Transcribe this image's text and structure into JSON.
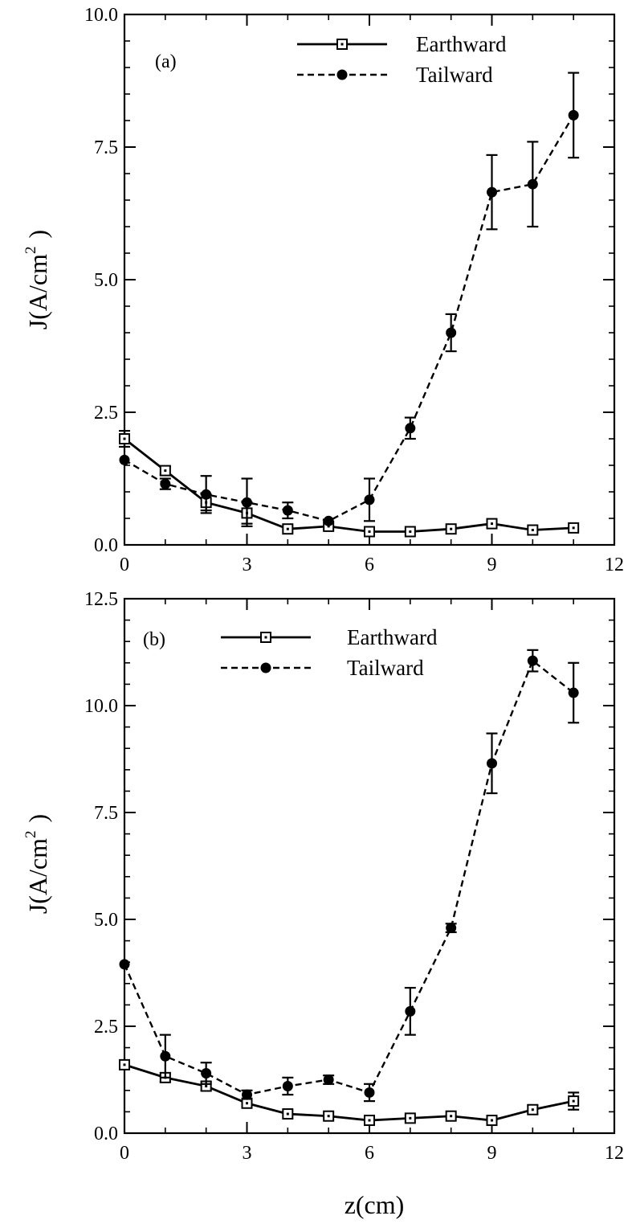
{
  "figure": {
    "xlabel": "z(cm)"
  },
  "chart_data": [
    {
      "type": "line",
      "panel_label": "(a)",
      "ylabel_main": "J(A/cm",
      "ylabel_sup": "2",
      "ylabel_close": ")",
      "xlim": [
        0,
        12
      ],
      "ylim": [
        0,
        10
      ],
      "xticks": [
        "0",
        "3",
        "6",
        "9",
        "12"
      ],
      "yticks": [
        "0.0",
        "2.5",
        "5.0",
        "7.5",
        "10.0"
      ],
      "grid": false,
      "legend_position": "top-right",
      "x": [
        0,
        1,
        2,
        3,
        4,
        5,
        6,
        7,
        8,
        9,
        10,
        11
      ],
      "series": [
        {
          "name": "Earthward",
          "style": "solid",
          "marker": "open-square",
          "values": [
            2.0,
            1.4,
            0.8,
            0.6,
            0.3,
            0.35,
            0.25,
            0.25,
            0.3,
            0.4,
            0.28,
            0.32
          ],
          "errors": [
            0.15,
            0.08,
            0.15,
            0.2,
            0,
            0,
            0,
            0,
            0,
            0,
            0,
            0
          ]
        },
        {
          "name": "Tailward",
          "style": "dashed",
          "marker": "filled-circle",
          "values": [
            1.6,
            1.15,
            0.95,
            0.8,
            0.65,
            0.45,
            0.85,
            2.2,
            4.0,
            6.65,
            6.8,
            8.1
          ],
          "errors": [
            0,
            0.1,
            0.35,
            0.45,
            0.15,
            0,
            0.4,
            0.2,
            0.35,
            0.7,
            0.8,
            0.8
          ]
        }
      ]
    },
    {
      "type": "line",
      "panel_label": "(b)",
      "ylabel_main": "J(A/cm",
      "ylabel_sup": "2",
      "ylabel_close": ")",
      "xlim": [
        0,
        12
      ],
      "ylim": [
        0,
        12.5
      ],
      "xticks": [
        "0",
        "3",
        "6",
        "9",
        "12"
      ],
      "yticks": [
        "0.0",
        "2.5",
        "5.0",
        "7.5",
        "10.0",
        "12.5"
      ],
      "grid": false,
      "legend_position": "top-right",
      "x": [
        0,
        1,
        2,
        3,
        4,
        5,
        6,
        7,
        8,
        9,
        10,
        11
      ],
      "series": [
        {
          "name": "Earthward",
          "style": "solid",
          "marker": "open-square",
          "values": [
            1.6,
            1.3,
            1.1,
            0.7,
            0.45,
            0.4,
            0.3,
            0.35,
            0.4,
            0.3,
            0.55,
            0.75
          ],
          "errors": [
            0,
            0.1,
            0.1,
            0.1,
            0,
            0,
            0,
            0,
            0,
            0,
            0.1,
            0.2
          ]
        },
        {
          "name": "Tailward",
          "style": "dashed",
          "marker": "filled-circle",
          "values": [
            3.95,
            1.8,
            1.4,
            0.9,
            1.1,
            1.25,
            0.95,
            2.85,
            4.8,
            8.65,
            11.05,
            10.3
          ],
          "errors": [
            0,
            0.5,
            0.25,
            0.1,
            0.2,
            0.1,
            0.2,
            0.55,
            0.1,
            0.7,
            0.25,
            0.7
          ]
        }
      ]
    }
  ]
}
